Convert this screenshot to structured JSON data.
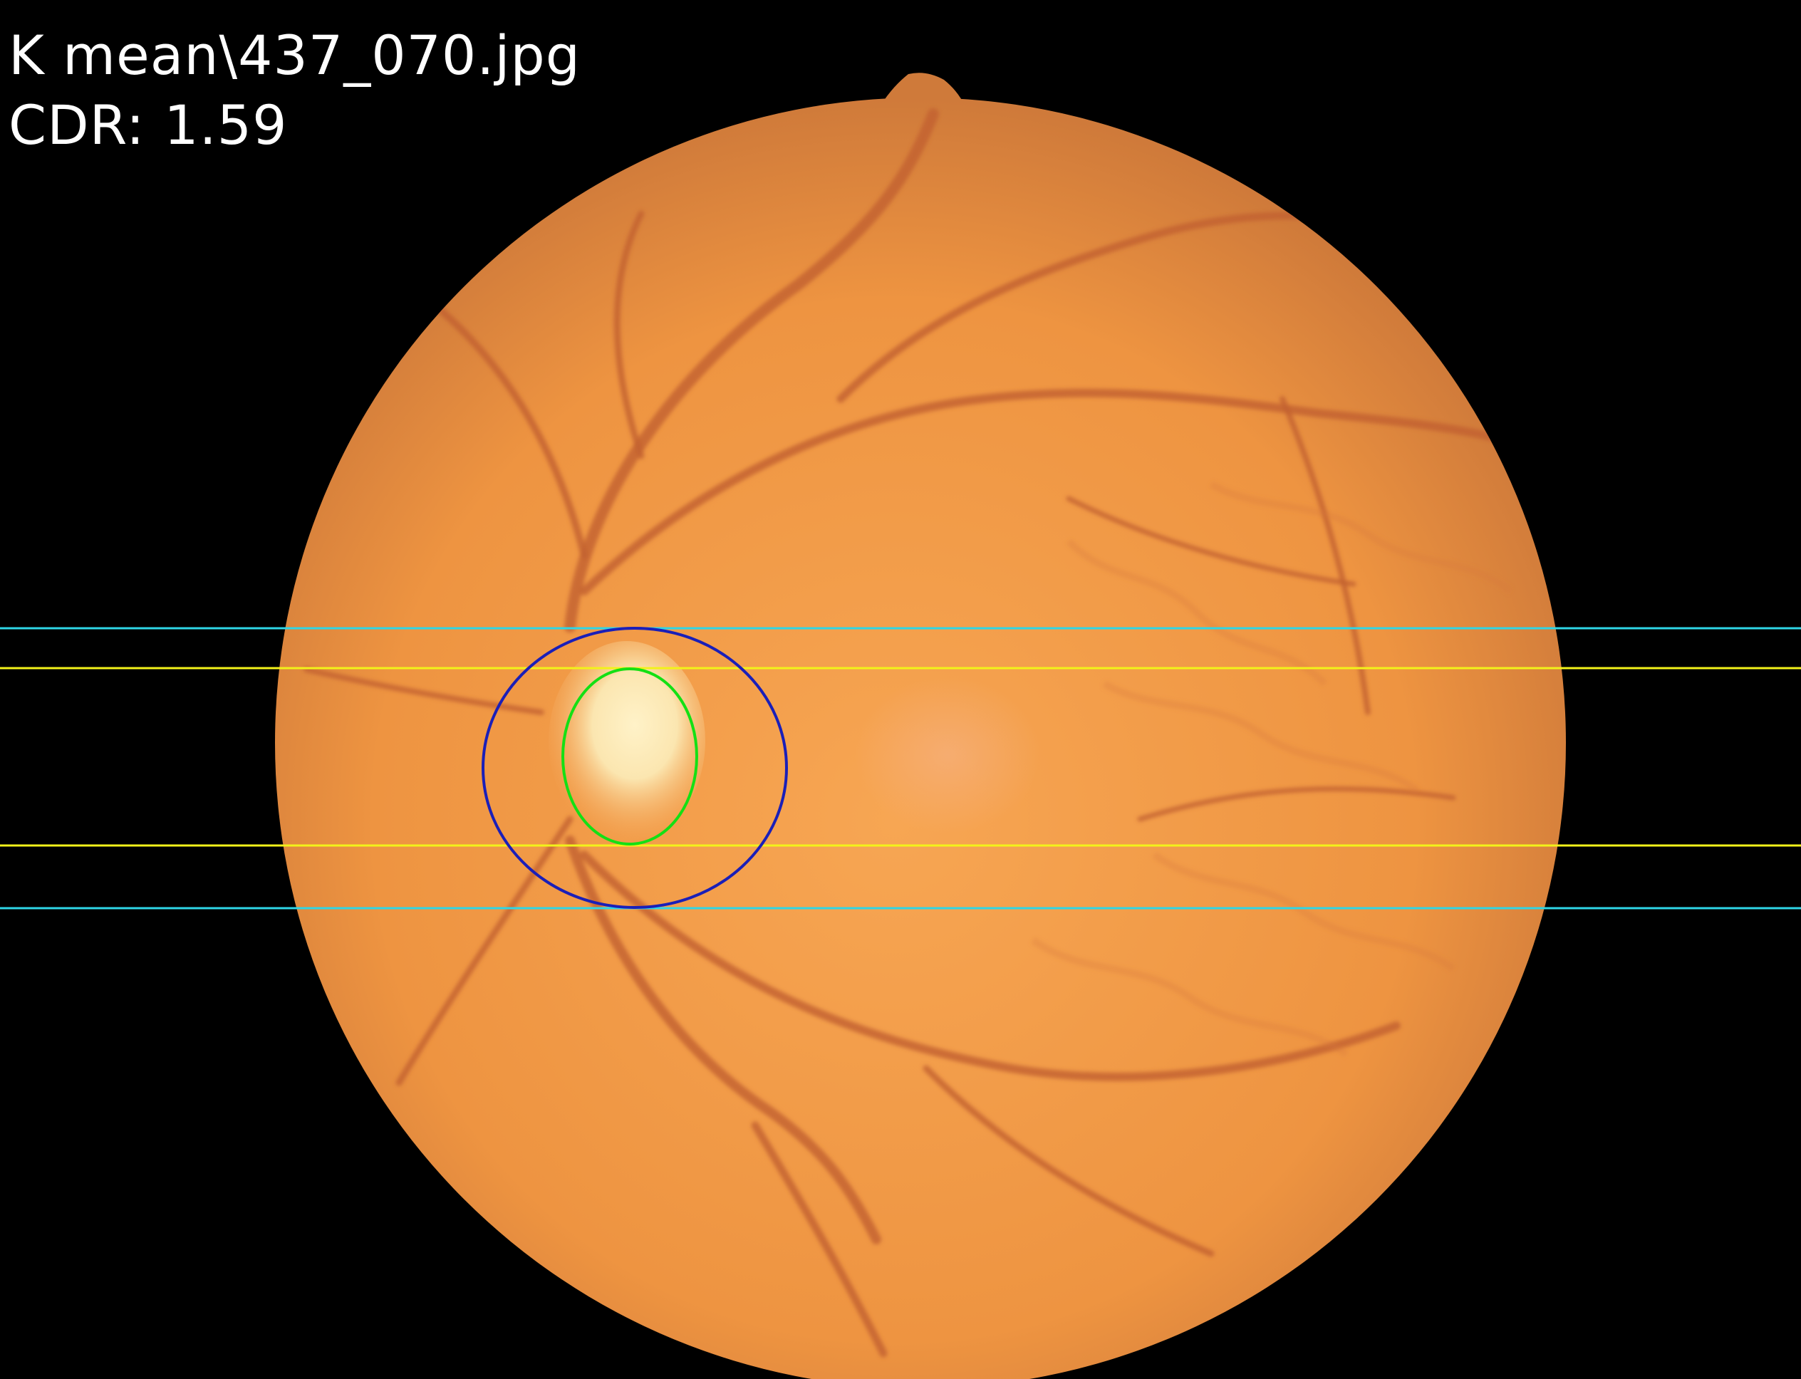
{
  "overlay": {
    "file_label": "K mean\\437_070.jpg",
    "cdr_label": "CDR:",
    "cdr_value": "1.59"
  },
  "colors": {
    "background": "#000000",
    "text": "#ffffff",
    "fundus_light": "#f7a653",
    "fundus_mid": "#ee9441",
    "fundus_edge": "#cf7a3a",
    "vessel": "#c2602e",
    "optic_disc": "#fbe6b0",
    "disc_contour": "#1a1fb8",
    "cup_contour": "#14e014",
    "disc_bound_lines": "#2ed6e6",
    "cup_bound_lines": "#f2f21a"
  },
  "icons": {
    "fundus": "retina-fundus-image",
    "disc": "optic-disc-ellipse",
    "cup": "optic-cup-ellipse"
  }
}
